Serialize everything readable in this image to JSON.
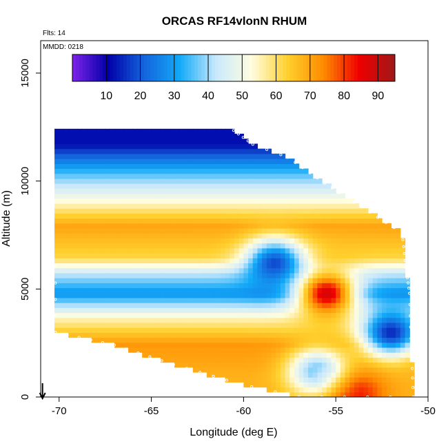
{
  "chart_data": {
    "type": "heatmap",
    "title": "ORCAS RF14vlonN RHUM",
    "annotations": [
      "Flts: 14",
      "MMDD: 0218"
    ],
    "xlabel": "Longitude (deg E)",
    "ylabel": "Altitude (m)",
    "xlim": [
      -71,
      -50
    ],
    "ylim": [
      0,
      16500
    ],
    "xticks": [
      -70,
      -65,
      -60,
      -55,
      -50
    ],
    "yticks": [
      0,
      5000,
      10000,
      15000
    ],
    "grid": false,
    "colorbar": {
      "placement": "top-inset",
      "range": [
        0,
        95
      ],
      "ticks": [
        10,
        20,
        30,
        40,
        50,
        60,
        70,
        80,
        90
      ],
      "colors": [
        "#7e22e8",
        "#0000a8",
        "#1464dc",
        "#12aaf8",
        "#c8e8fc",
        "#fffde0",
        "#ffd02e",
        "#ff8c00",
        "#ee0000",
        "#a01818"
      ]
    },
    "data_extent": [
      [
        -70.2,
        12500
      ],
      [
        -60.8,
        12500
      ],
      [
        -59.5,
        11700
      ],
      [
        -57.6,
        11100
      ],
      [
        -55.6,
        9900
      ],
      [
        -53.6,
        8800
      ],
      [
        -51.4,
        7600
      ],
      [
        -51.2,
        6000
      ],
      [
        -51.0,
        4800
      ],
      [
        -50.9,
        2200
      ],
      [
        -50.8,
        0
      ],
      [
        -57.0,
        0
      ],
      [
        -60.2,
        600
      ],
      [
        -63.8,
        1500
      ],
      [
        -67.0,
        2400
      ],
      [
        -70.2,
        3000
      ],
      [
        -70.2,
        6800
      ]
    ],
    "rh_layers": [
      {
        "alt_top": 12500,
        "alt_bottom": 10900,
        "rh": 12
      },
      {
        "alt_top": 10900,
        "alt_bottom": 9800,
        "rh": 35
      },
      {
        "alt_top": 9800,
        "alt_bottom": 9000,
        "rh": 48
      },
      {
        "alt_top": 9000,
        "alt_bottom": 6900,
        "rh": 70
      },
      {
        "alt_top": 6900,
        "alt_bottom": 6000,
        "rh": 62
      },
      {
        "alt_top": 6000,
        "alt_bottom": 5400,
        "rh": 42
      },
      {
        "alt_top": 5400,
        "alt_bottom": 4200,
        "rh": 28
      },
      {
        "alt_top": 4200,
        "alt_bottom": 3100,
        "rh": 55
      },
      {
        "alt_top": 3100,
        "alt_bottom": 1800,
        "rh": 72
      },
      {
        "alt_top": 1800,
        "alt_bottom": 0,
        "rh": 68
      }
    ],
    "features": [
      {
        "lon": -55.5,
        "alt": 4800,
        "rh": 88
      },
      {
        "lon": -58.3,
        "alt": 6200,
        "rh": 18
      },
      {
        "lon": -56.0,
        "alt": 1200,
        "rh": 36
      },
      {
        "lon": -54.0,
        "alt": 200,
        "rh": 84
      },
      {
        "lon": -52.0,
        "alt": 3000,
        "rh": 15
      }
    ],
    "flight_arrow_lon": -70.9
  }
}
